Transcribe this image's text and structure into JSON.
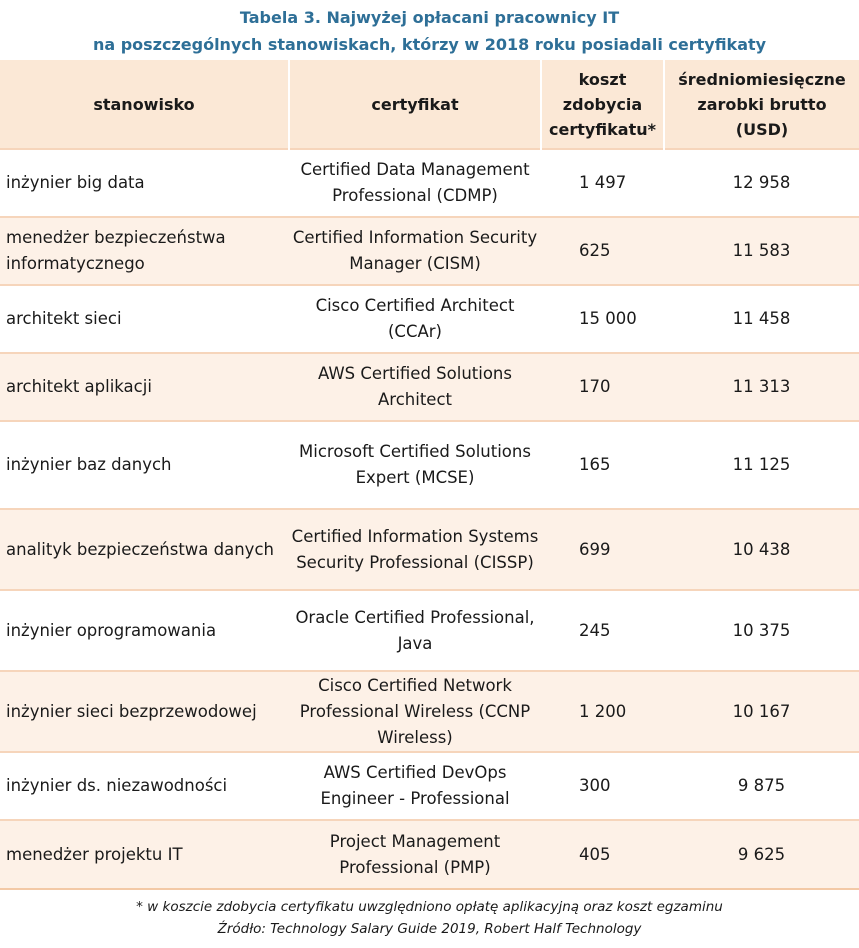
{
  "title": {
    "line1": "Tabela 3. Najwyżej opłacani pracownicy IT",
    "line2": "na poszczególnych stanowiskach, którzy w 2018 roku posiadali certyfikaty"
  },
  "headers": {
    "role": "stanowisko",
    "cert": "certyfikat",
    "cost": "koszt zdobycia certyfikatu*",
    "salary": "średniomiesięczne zarobki brutto (USD)"
  },
  "rows": [
    {
      "role": "inżynier big data",
      "cert": "Certified Data Management Professional (CDMP)",
      "cost": "1 497",
      "salary": "12 958"
    },
    {
      "role": "menedżer bezpieczeństwa informatycznego",
      "cert": "Certified Information Security Manager (CISM)",
      "cost": "625",
      "salary": "11 583"
    },
    {
      "role": "architekt sieci",
      "cert": "Cisco Certified Architect (CCAr)",
      "cost": "15 000",
      "salary": "11 458"
    },
    {
      "role": "architekt aplikacji",
      "cert": "AWS Certified Solutions Architect",
      "cost": "170",
      "salary": "11 313"
    },
    {
      "role": "inżynier baz danych",
      "cert": "Microsoft Certified Solutions Expert (MCSE)",
      "cost": "165",
      "salary": "11 125"
    },
    {
      "role": "analityk bezpieczeństwa danych",
      "cert": "Certified Information Systems Security Professional (CISSP)",
      "cost": "699",
      "salary": "10 438"
    },
    {
      "role": "inżynier oprogramowania",
      "cert": "Oracle Certified Professional, Java",
      "cost": "245",
      "salary": "10 375"
    },
    {
      "role": "inżynier sieci bezprzewodowej",
      "cert": "Cisco Certified Network Professional Wireless (CCNP Wireless)",
      "cost": "1 200",
      "salary": "10 167"
    },
    {
      "role": "inżynier ds. niezawodności",
      "cert": "AWS Certified DevOps Engineer - Professional",
      "cost": "300",
      "salary": "9 875"
    },
    {
      "role": "menedżer projektu IT",
      "cert": "Project Management Professional (PMP)",
      "cost": "405",
      "salary": "9 625"
    }
  ],
  "footnote": "* w koszcie zdobycia certyfikatu uwzględniono opłatę aplikacyjną oraz koszt egzaminu",
  "source": "Źródło: Technology Salary Guide 2019, Robert Half Technology",
  "colors": {
    "title": "#2e6f97",
    "header_bg": "#fbe8d6",
    "row_alt_bg": "#fdf1e7",
    "divider": "#f6d5bb"
  }
}
